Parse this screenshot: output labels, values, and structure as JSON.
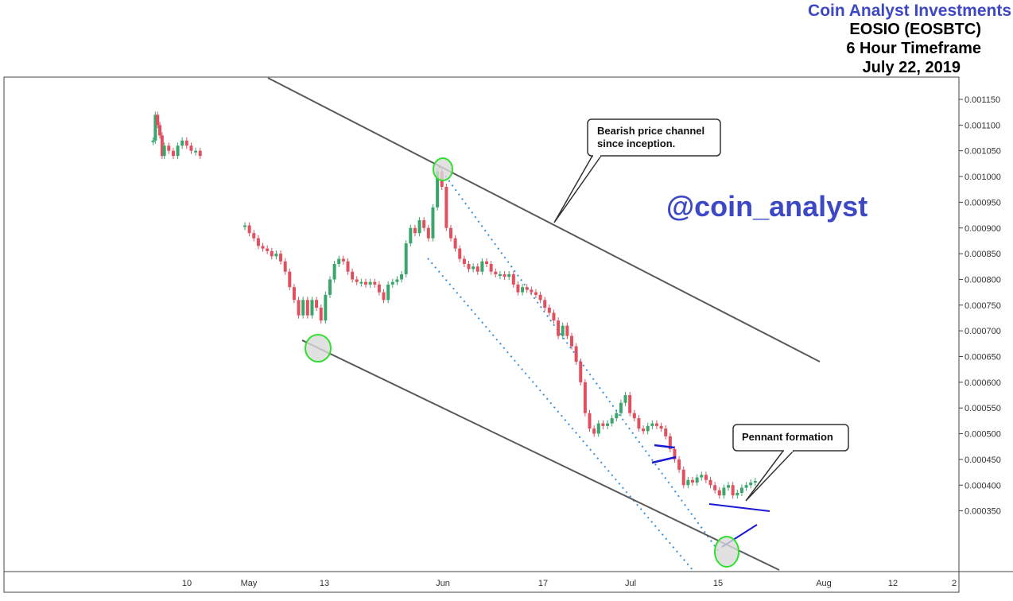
{
  "header": {
    "brand": "Coin Analyst Investments",
    "pair": "EOSIO (EOSBTC)",
    "timeframe": "6 Hour Timeframe",
    "date": "July 22, 2019"
  },
  "watermark": "@coin_analyst",
  "callouts": {
    "channel_line1": "Bearish price channel",
    "channel_line2": "since inception.",
    "pennant": "Pennant formation"
  },
  "colors": {
    "up": "#3aa66b",
    "down": "#e0505e",
    "channel": "#5a5a5a",
    "dotted": "#3b8fd9",
    "pennant": "#1a1ad6",
    "circle_fill": "#d9d9d9",
    "circle_stroke": "#2ee02e"
  },
  "chart_data": {
    "type": "line",
    "xlabel": "",
    "ylabel": "",
    "x_ticks": [
      "10",
      "May",
      "13",
      "Jun",
      "17",
      "Jul",
      "15",
      "Aug",
      "12",
      "2"
    ],
    "y_ticks": [
      "0.001150",
      "0.001100",
      "0.001050",
      "0.001000",
      "0.000950",
      "0.000900",
      "0.000850",
      "0.000800",
      "0.000750",
      "0.000700",
      "0.000650",
      "0.000600",
      "0.000550",
      "0.000500",
      "0.000450",
      "0.000400",
      "0.000350"
    ],
    "ylim": [
      0.00031,
      0.00118
    ],
    "series": [
      {
        "values": [
          [
            -20.5,
            0.00107
          ],
          [
            -20,
            0.00112
          ],
          [
            -19.5,
            0.0011
          ],
          [
            -19,
            0.00108
          ],
          [
            -18.5,
            0.00104
          ],
          [
            -18,
            0.00106
          ],
          [
            -17,
            0.00105
          ],
          [
            -16,
            0.00104
          ],
          [
            -15,
            0.00106
          ],
          [
            -14,
            0.00107
          ],
          [
            -13,
            0.00106
          ],
          [
            -12,
            0.00105
          ],
          [
            -11,
            0.00105
          ],
          [
            -10,
            0.00104
          ],
          [
            0,
            0.000905
          ],
          [
            1,
            0.00089
          ],
          [
            2,
            0.00088
          ],
          [
            3,
            0.000865
          ],
          [
            4,
            0.00086
          ],
          [
            5,
            0.000855
          ],
          [
            6,
            0.000845
          ],
          [
            7,
            0.00085
          ],
          [
            8,
            0.000835
          ],
          [
            9,
            0.000815
          ],
          [
            10,
            0.000785
          ],
          [
            11,
            0.00076
          ],
          [
            12,
            0.00073
          ],
          [
            13,
            0.00076
          ],
          [
            14,
            0.00073
          ],
          [
            15,
            0.00076
          ],
          [
            16,
            0.000745
          ],
          [
            17,
            0.00072
          ],
          [
            18,
            0.00077
          ],
          [
            19,
            0.0008
          ],
          [
            20,
            0.00083
          ],
          [
            21,
            0.00084
          ],
          [
            22,
            0.000835
          ],
          [
            23,
            0.000815
          ],
          [
            24,
            0.0008
          ],
          [
            25,
            0.000795
          ],
          [
            26,
            0.000795
          ],
          [
            27,
            0.00079
          ],
          [
            28,
            0.000795
          ],
          [
            29,
            0.00079
          ],
          [
            30,
            0.000775
          ],
          [
            31,
            0.00076
          ],
          [
            32,
            0.00079
          ],
          [
            33,
            0.000795
          ],
          [
            34,
            0.0008
          ],
          [
            35,
            0.00081
          ],
          [
            36,
            0.00087
          ],
          [
            37,
            0.0009
          ],
          [
            38,
            0.00089
          ],
          [
            39,
            0.000915
          ],
          [
            40,
            0.0009
          ],
          [
            41,
            0.00088
          ],
          [
            42,
            0.00094
          ],
          [
            43,
            0.00101
          ],
          [
            44,
            0.00098
          ],
          [
            45,
            0.0009
          ],
          [
            46,
            0.00088
          ],
          [
            47,
            0.00086
          ],
          [
            48,
            0.00084
          ],
          [
            49,
            0.00083
          ],
          [
            50,
            0.00082
          ],
          [
            51,
            0.000825
          ],
          [
            52,
            0.000815
          ],
          [
            53,
            0.000835
          ],
          [
            54,
            0.00083
          ],
          [
            55,
            0.000815
          ],
          [
            56,
            0.00081
          ],
          [
            57,
            0.00081
          ],
          [
            58,
            0.000805
          ],
          [
            59,
            0.00081
          ],
          [
            60,
            0.00079
          ],
          [
            61,
            0.000775
          ],
          [
            62,
            0.000785
          ],
          [
            63,
            0.00078
          ],
          [
            64,
            0.000775
          ],
          [
            65,
            0.00077
          ],
          [
            66,
            0.00076
          ],
          [
            67,
            0.000745
          ],
          [
            68,
            0.000735
          ],
          [
            69,
            0.00072
          ],
          [
            70,
            0.00069
          ],
          [
            71,
            0.00071
          ],
          [
            72,
            0.00069
          ],
          [
            73,
            0.00067
          ],
          [
            74,
            0.00064
          ],
          [
            75,
            0.0006
          ],
          [
            76,
            0.00054
          ],
          [
            77,
            0.00051
          ],
          [
            78,
            0.0005
          ],
          [
            79,
            0.00052
          ],
          [
            80,
            0.000515
          ],
          [
            81,
            0.00052
          ],
          [
            82,
            0.00053
          ],
          [
            83,
            0.00054
          ],
          [
            84,
            0.00056
          ],
          [
            85,
            0.000575
          ],
          [
            86,
            0.00054
          ],
          [
            87,
            0.00053
          ],
          [
            88,
            0.00051
          ],
          [
            89,
            0.000505
          ],
          [
            90,
            0.000515
          ],
          [
            91,
            0.00052
          ],
          [
            92,
            0.000515
          ],
          [
            93,
            0.00051
          ],
          [
            94,
            0.000495
          ],
          [
            95,
            0.00047
          ],
          [
            96,
            0.00045
          ],
          [
            97,
            0.00043
          ],
          [
            98,
            0.0004
          ],
          [
            99,
            0.00041
          ],
          [
            100,
            0.000405
          ],
          [
            101,
            0.000415
          ],
          [
            102,
            0.00042
          ],
          [
            103,
            0.00041
          ],
          [
            104,
            0.0004
          ],
          [
            105,
            0.00039
          ],
          [
            106,
            0.00038
          ],
          [
            107,
            0.000395
          ],
          [
            108,
            0.0004
          ],
          [
            109,
            0.00038
          ],
          [
            110,
            0.000385
          ],
          [
            111,
            0.000395
          ],
          [
            112,
            0.0004
          ],
          [
            113,
            0.000405
          ],
          [
            114,
            0.000408
          ]
        ]
      }
    ],
    "annotations": [
      "Bearish price channel since inception.",
      "Pennant formation"
    ],
    "legend": "none",
    "grid": false
  }
}
